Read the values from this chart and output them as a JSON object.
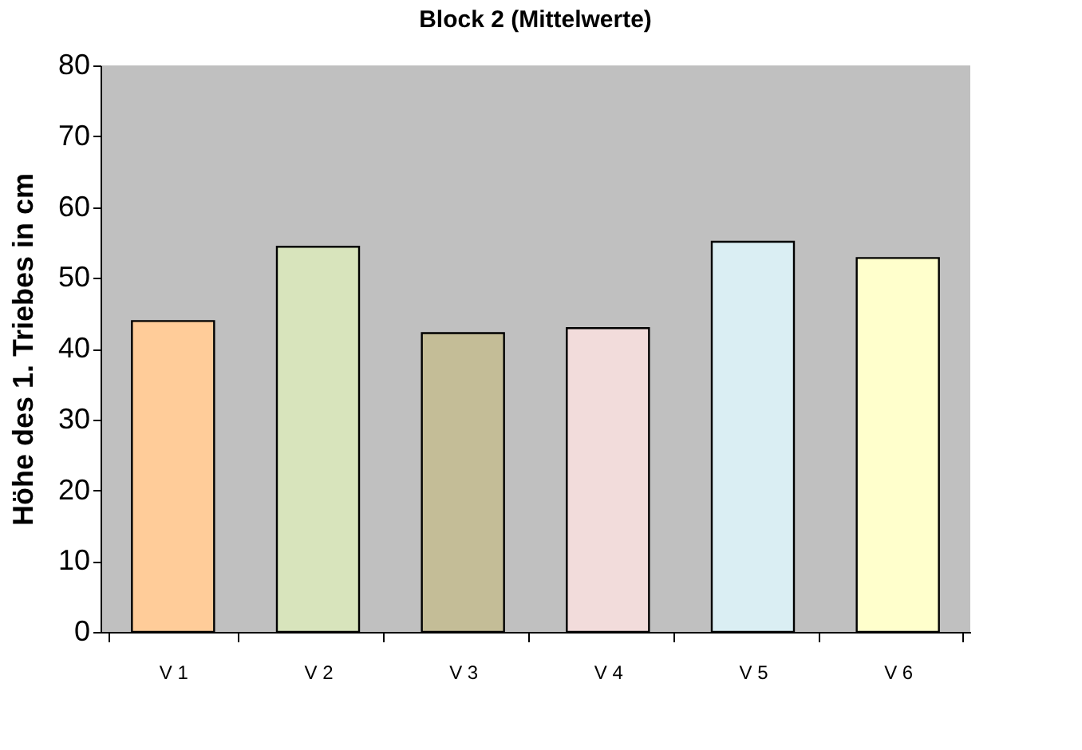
{
  "chart_data": {
    "type": "bar",
    "title": "Block 2 (Mittelwerte)",
    "ylabel": "Höhe des 1. Triebes in cm",
    "categories": [
      "V 1",
      "V 2",
      "V 3",
      "V 4",
      "V 5",
      "V 6"
    ],
    "values": [
      43.9,
      54.4,
      42.2,
      42.9,
      55.1,
      52.8
    ],
    "colors": [
      "#ffcc99",
      "#d8e4bc",
      "#c4bd97",
      "#f2dcdb",
      "#daeef3",
      "#ffffcc"
    ],
    "ylim": [
      0,
      80
    ],
    "yticks": [
      0,
      10,
      20,
      30,
      40,
      50,
      60,
      70,
      80
    ],
    "grid": false
  }
}
